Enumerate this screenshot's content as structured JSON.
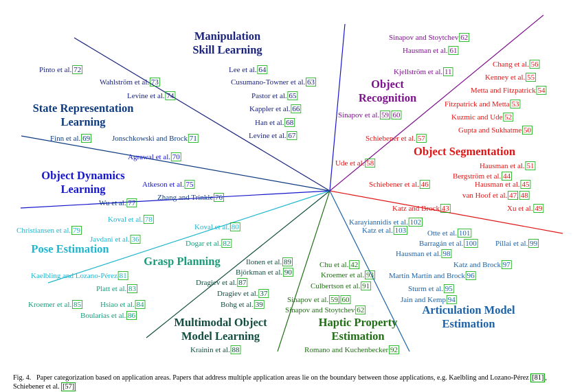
{
  "colors": {
    "manipulation": "#1a237e",
    "state_representation": "#0d3b80",
    "object_dynamics": "#1515cc",
    "pose_estimation": "#1fb6cf",
    "grasp_planning": "#1a9c7a",
    "multimodal": "#124d3f",
    "haptic": "#1e6e12",
    "articulation": "#1c62a8",
    "segmentation": "#e01414",
    "recognition": "#7e118e",
    "citation_box": "#00aa00"
  },
  "categories": [
    {
      "id": "manipulation",
      "lines": [
        "Manipulation",
        "Skill Learning"
      ]
    },
    {
      "id": "state_representation",
      "lines": [
        "State Representation",
        "Learning"
      ]
    },
    {
      "id": "object_dynamics",
      "lines": [
        "Object Dynamics",
        "Learning"
      ]
    },
    {
      "id": "pose_estimation",
      "lines": [
        "Pose Estimation"
      ]
    },
    {
      "id": "grasp_planning",
      "lines": [
        "Grasp Planning"
      ]
    },
    {
      "id": "multimodal",
      "lines": [
        "Multimodal Object",
        "Model Learning"
      ]
    },
    {
      "id": "haptic",
      "lines": [
        "Haptic Property",
        "Estimation"
      ]
    },
    {
      "id": "articulation",
      "lines": [
        "Articulation Model",
        "Estimation"
      ]
    },
    {
      "id": "segmentation",
      "lines": [
        "Object Segmentation"
      ]
    },
    {
      "id": "recognition",
      "lines": [
        "Object",
        "Recognition"
      ]
    }
  ],
  "references": [
    {
      "name": "Pinto et al.",
      "cites": [
        "72"
      ],
      "color": "manipulation"
    },
    {
      "name": "Wahlström et al.",
      "cites": [
        "73"
      ],
      "color": "manipulation"
    },
    {
      "name": "Levine et al.",
      "cites": [
        "74"
      ],
      "color": "manipulation"
    },
    {
      "name": "Lee et al.",
      "cites": [
        "64"
      ],
      "color": "manipulation"
    },
    {
      "name": "Cusumano-Towner et al.",
      "cites": [
        "63"
      ],
      "color": "manipulation"
    },
    {
      "name": "Pastor et al.",
      "cites": [
        "65"
      ],
      "color": "manipulation"
    },
    {
      "name": "Kappler et al.",
      "cites": [
        "66"
      ],
      "color": "manipulation"
    },
    {
      "name": "Han et al.",
      "cites": [
        "68"
      ],
      "color": "manipulation"
    },
    {
      "name": "Levine et al.",
      "cites": [
        "67"
      ],
      "color": "manipulation"
    },
    {
      "name": "Finn et al.",
      "cites": [
        "69"
      ],
      "color": "state_representation"
    },
    {
      "name": "Jonschkowski and Brock",
      "cites": [
        "71"
      ],
      "color": "state_representation"
    },
    {
      "name": "Agrawal et al.",
      "cites": [
        "70"
      ],
      "color": "object_dynamics"
    },
    {
      "name": "Atkeson et al.",
      "cites": [
        "75"
      ],
      "color": "object_dynamics"
    },
    {
      "name": "Zhang and Trinkle",
      "cites": [
        "76"
      ],
      "color": "state_representation"
    },
    {
      "name": "Wu et al.",
      "cites": [
        "77"
      ],
      "color": "state_representation"
    },
    {
      "name": "Koval et al.",
      "cites": [
        "78"
      ],
      "color": "pose_estimation"
    },
    {
      "name": "Christiansen et al.",
      "cites": [
        "79"
      ],
      "color": "pose_estimation"
    },
    {
      "name": "Javdani et al.",
      "cites": [
        "36"
      ],
      "color": "pose_estimation"
    },
    {
      "name": "Koval et al.",
      "cites": [
        "80"
      ],
      "color": "pose_estimation"
    },
    {
      "name": "Dogar et al.",
      "cites": [
        "82"
      ],
      "color": "grasp_planning"
    },
    {
      "name": "Kaelbling and Lozano-Pérez",
      "cites": [
        "81"
      ],
      "color": "pose_estimation"
    },
    {
      "name": "Platt et al.",
      "cites": [
        "83"
      ],
      "color": "grasp_planning"
    },
    {
      "name": "Kroemer et al.",
      "cites": [
        "85"
      ],
      "color": "grasp_planning"
    },
    {
      "name": "Hsiao et al.",
      "cites": [
        "84"
      ],
      "color": "grasp_planning"
    },
    {
      "name": "Boularias et al.",
      "cites": [
        "86"
      ],
      "color": "grasp_planning"
    },
    {
      "name": "Ilonen et al.",
      "cites": [
        "89"
      ],
      "color": "multimodal"
    },
    {
      "name": "Björkman et al.",
      "cites": [
        "90"
      ],
      "color": "multimodal"
    },
    {
      "name": "Dragiev et al.",
      "cites": [
        "87"
      ],
      "color": "multimodal"
    },
    {
      "name": "Dragiev et al.",
      "cites": [
        "37"
      ],
      "color": "multimodal"
    },
    {
      "name": "Bohg et al.",
      "cites": [
        "39"
      ],
      "color": "multimodal"
    },
    {
      "name": "Krainin et al.",
      "cites": [
        "88"
      ],
      "color": "multimodal"
    },
    {
      "name": "Chu et al.",
      "cites": [
        "42"
      ],
      "color": "haptic"
    },
    {
      "name": "Kroemer et al.",
      "cites": [
        "93"
      ],
      "color": "haptic"
    },
    {
      "name": "Culbertson et al.",
      "cites": [
        "91"
      ],
      "color": "haptic"
    },
    {
      "name": "Sinapov et al.",
      "cites": [
        "59",
        "60"
      ],
      "color": "haptic"
    },
    {
      "name": "Sinapov and Stoytchev",
      "cites": [
        "62"
      ],
      "color": "haptic"
    },
    {
      "name": "Romano and Kuchenbecker",
      "cites": [
        "92"
      ],
      "color": "haptic"
    },
    {
      "name": "Karayiannidis et al.",
      "cites": [
        "102"
      ],
      "color": "articulation"
    },
    {
      "name": "Katz et al.",
      "cites": [
        "103"
      ],
      "color": "articulation"
    },
    {
      "name": "Otte et al.",
      "cites": [
        "101"
      ],
      "color": "articulation"
    },
    {
      "name": "Barragán et al.",
      "cites": [
        "100"
      ],
      "color": "articulation"
    },
    {
      "name": "Pillai et al.",
      "cites": [
        "99"
      ],
      "color": "articulation"
    },
    {
      "name": "Hausman et al.",
      "cites": [
        "98"
      ],
      "color": "articulation"
    },
    {
      "name": "Katz and Brock",
      "cites": [
        "97"
      ],
      "color": "articulation"
    },
    {
      "name": "Martín Martín and Brock",
      "cites": [
        "96"
      ],
      "color": "articulation"
    },
    {
      "name": "Sturm et al.",
      "cites": [
        "95"
      ],
      "color": "articulation"
    },
    {
      "name": "Jain and Kemp",
      "cites": [
        "94"
      ],
      "color": "articulation"
    },
    {
      "name": "Sinapov and Stoytchev",
      "cites": [
        "62"
      ],
      "color": "recognition"
    },
    {
      "name": "Hausman et al.",
      "cites": [
        "61"
      ],
      "color": "recognition"
    },
    {
      "name": "Kjellström et al.",
      "cites": [
        "11"
      ],
      "color": "recognition"
    },
    {
      "name": "Sinapov et al.",
      "cites": [
        "59",
        "60"
      ],
      "color": "recognition"
    },
    {
      "name": "Chang et al.",
      "cites": [
        "56"
      ],
      "color": "segmentation"
    },
    {
      "name": "Kenney et al.",
      "cites": [
        "55"
      ],
      "color": "segmentation"
    },
    {
      "name": "Metta and Fitzpatrick",
      "cites": [
        "54"
      ],
      "color": "segmentation"
    },
    {
      "name": "Fitzpatrick and Metta",
      "cites": [
        "53"
      ],
      "color": "segmentation"
    },
    {
      "name": "Kuzmic and Ude",
      "cites": [
        "52"
      ],
      "color": "segmentation"
    },
    {
      "name": "Gupta and Sukhatme",
      "cites": [
        "50"
      ],
      "color": "segmentation"
    },
    {
      "name": "Schiebener et al.",
      "cites": [
        "57"
      ],
      "color": "segmentation"
    },
    {
      "name": "Ude et al.",
      "cites": [
        "58"
      ],
      "color": "segmentation"
    },
    {
      "name": "Hausman et al.",
      "cites": [
        "51"
      ],
      "color": "segmentation"
    },
    {
      "name": "Bergström et al.",
      "cites": [
        "44"
      ],
      "color": "segmentation"
    },
    {
      "name": "Schiebener et al.",
      "cites": [
        "46"
      ],
      "color": "segmentation"
    },
    {
      "name": "Hausman et al.",
      "cites": [
        "45"
      ],
      "color": "segmentation"
    },
    {
      "name": "van Hoof et al.",
      "cites": [
        "47",
        "48"
      ],
      "color": "segmentation"
    },
    {
      "name": "Katz and Brock",
      "cites": [
        "43"
      ],
      "color": "segmentation"
    },
    {
      "name": "Xu et al.",
      "cites": [
        "49"
      ],
      "color": "segmentation"
    }
  ],
  "caption": {
    "label": "Fig. 4.",
    "text_before": "Paper categorization based on application areas. Papers that address multiple application areas lie on the boundary between those applications, e.g. Kaelbling and Lozano-Pérez ",
    "ref1": "[81]",
    "text_middle": ", Schiebener et al. ",
    "ref2": "[57]"
  }
}
